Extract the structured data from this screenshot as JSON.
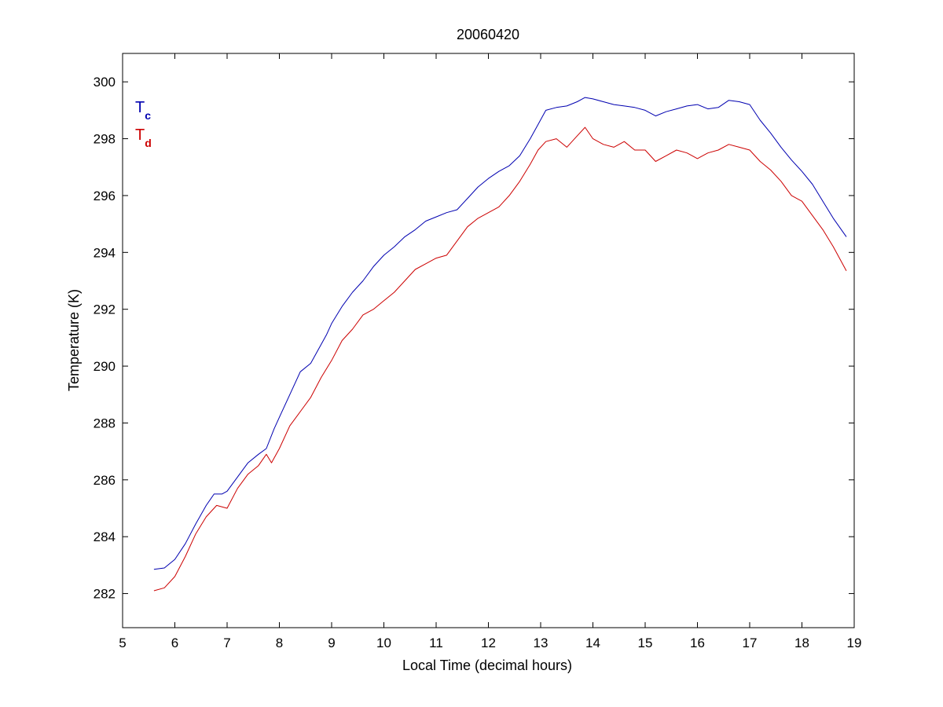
{
  "chart_data": {
    "type": "line",
    "title": "20060420",
    "xlabel": "Local Time (decimal hours)",
    "ylabel": "Temperature (K)",
    "xlim": [
      5,
      19
    ],
    "ylim": [
      280.8,
      301
    ],
    "xticks": [
      5,
      6,
      7,
      8,
      9,
      10,
      11,
      12,
      13,
      14,
      15,
      16,
      17,
      18,
      19
    ],
    "yticks": [
      282,
      284,
      286,
      288,
      290,
      292,
      294,
      296,
      298,
      300
    ],
    "xtick_labels": [
      "5",
      "6",
      "7",
      "8",
      "9",
      "10",
      "11",
      "12",
      "13",
      "14",
      "15",
      "16",
      "17",
      "18",
      "19"
    ],
    "ytick_labels": [
      "282",
      "284",
      "286",
      "288",
      "290",
      "292",
      "294",
      "296",
      "298",
      "300"
    ],
    "grid": false,
    "legend_position": "top-left",
    "legend": [
      {
        "main": "T",
        "sub": "c",
        "color": "#0000b0"
      },
      {
        "main": "T",
        "sub": "d",
        "color": "#cc0000"
      }
    ],
    "series": [
      {
        "color": "#0000b0",
        "x": [
          5.6,
          5.8,
          6.0,
          6.2,
          6.4,
          6.6,
          6.75,
          6.9,
          7.0,
          7.2,
          7.4,
          7.6,
          7.75,
          7.9,
          8.0,
          8.2,
          8.4,
          8.6,
          8.75,
          8.9,
          9.0,
          9.2,
          9.4,
          9.6,
          9.8,
          10.0,
          10.2,
          10.4,
          10.6,
          10.8,
          11.0,
          11.2,
          11.4,
          11.6,
          11.8,
          12.0,
          12.2,
          12.4,
          12.6,
          12.8,
          12.95,
          13.1,
          13.3,
          13.5,
          13.7,
          13.85,
          14.0,
          14.2,
          14.4,
          14.6,
          14.8,
          15.0,
          15.2,
          15.4,
          15.6,
          15.8,
          16.0,
          16.2,
          16.4,
          16.6,
          16.8,
          17.0,
          17.2,
          17.4,
          17.6,
          17.8,
          18.0,
          18.2,
          18.4,
          18.6,
          18.85
        ],
        "y": [
          282.85,
          282.9,
          283.2,
          283.75,
          284.45,
          285.1,
          285.5,
          285.5,
          285.6,
          286.1,
          286.6,
          286.9,
          287.1,
          287.8,
          288.2,
          289.0,
          289.8,
          290.1,
          290.6,
          291.1,
          291.5,
          292.1,
          292.6,
          293.0,
          293.5,
          293.9,
          294.2,
          294.55,
          294.8,
          295.1,
          295.25,
          295.4,
          295.5,
          295.9,
          296.3,
          296.6,
          296.85,
          297.05,
          297.4,
          298.0,
          298.5,
          299.0,
          299.1,
          299.15,
          299.3,
          299.45,
          299.4,
          299.3,
          299.2,
          299.15,
          299.1,
          299.0,
          298.8,
          298.95,
          299.05,
          299.15,
          299.2,
          299.05,
          299.1,
          299.35,
          299.3,
          299.2,
          298.65,
          298.2,
          297.7,
          297.25,
          296.85,
          296.4,
          295.8,
          295.2,
          294.55
        ]
      },
      {
        "color": "#cc0000",
        "x": [
          5.6,
          5.8,
          6.0,
          6.2,
          6.4,
          6.6,
          6.8,
          7.0,
          7.2,
          7.4,
          7.6,
          7.75,
          7.85,
          8.0,
          8.2,
          8.4,
          8.6,
          8.8,
          9.0,
          9.2,
          9.4,
          9.6,
          9.8,
          10.0,
          10.2,
          10.4,
          10.6,
          10.8,
          11.0,
          11.2,
          11.4,
          11.6,
          11.8,
          12.0,
          12.2,
          12.4,
          12.6,
          12.8,
          12.95,
          13.1,
          13.3,
          13.5,
          13.7,
          13.85,
          14.0,
          14.2,
          14.4,
          14.6,
          14.8,
          15.0,
          15.2,
          15.4,
          15.6,
          15.8,
          16.0,
          16.2,
          16.4,
          16.6,
          16.8,
          17.0,
          17.2,
          17.4,
          17.6,
          17.8,
          18.0,
          18.2,
          18.4,
          18.6,
          18.85
        ],
        "y": [
          282.1,
          282.2,
          282.6,
          283.3,
          284.1,
          284.7,
          285.1,
          285.0,
          285.7,
          286.2,
          286.5,
          286.9,
          286.6,
          287.1,
          287.9,
          288.4,
          288.9,
          289.6,
          290.2,
          290.9,
          291.3,
          291.8,
          292.0,
          292.3,
          292.6,
          293.0,
          293.4,
          293.6,
          293.8,
          293.9,
          294.4,
          294.9,
          295.2,
          295.4,
          295.6,
          296.0,
          296.5,
          297.1,
          297.6,
          297.9,
          298.0,
          297.7,
          298.1,
          298.4,
          298.0,
          297.8,
          297.7,
          297.9,
          297.6,
          297.6,
          297.2,
          297.4,
          297.6,
          297.5,
          297.3,
          297.5,
          297.6,
          297.8,
          297.7,
          297.6,
          297.2,
          296.9,
          296.5,
          296.0,
          295.8,
          295.3,
          294.8,
          294.2,
          293.35
        ]
      }
    ]
  }
}
